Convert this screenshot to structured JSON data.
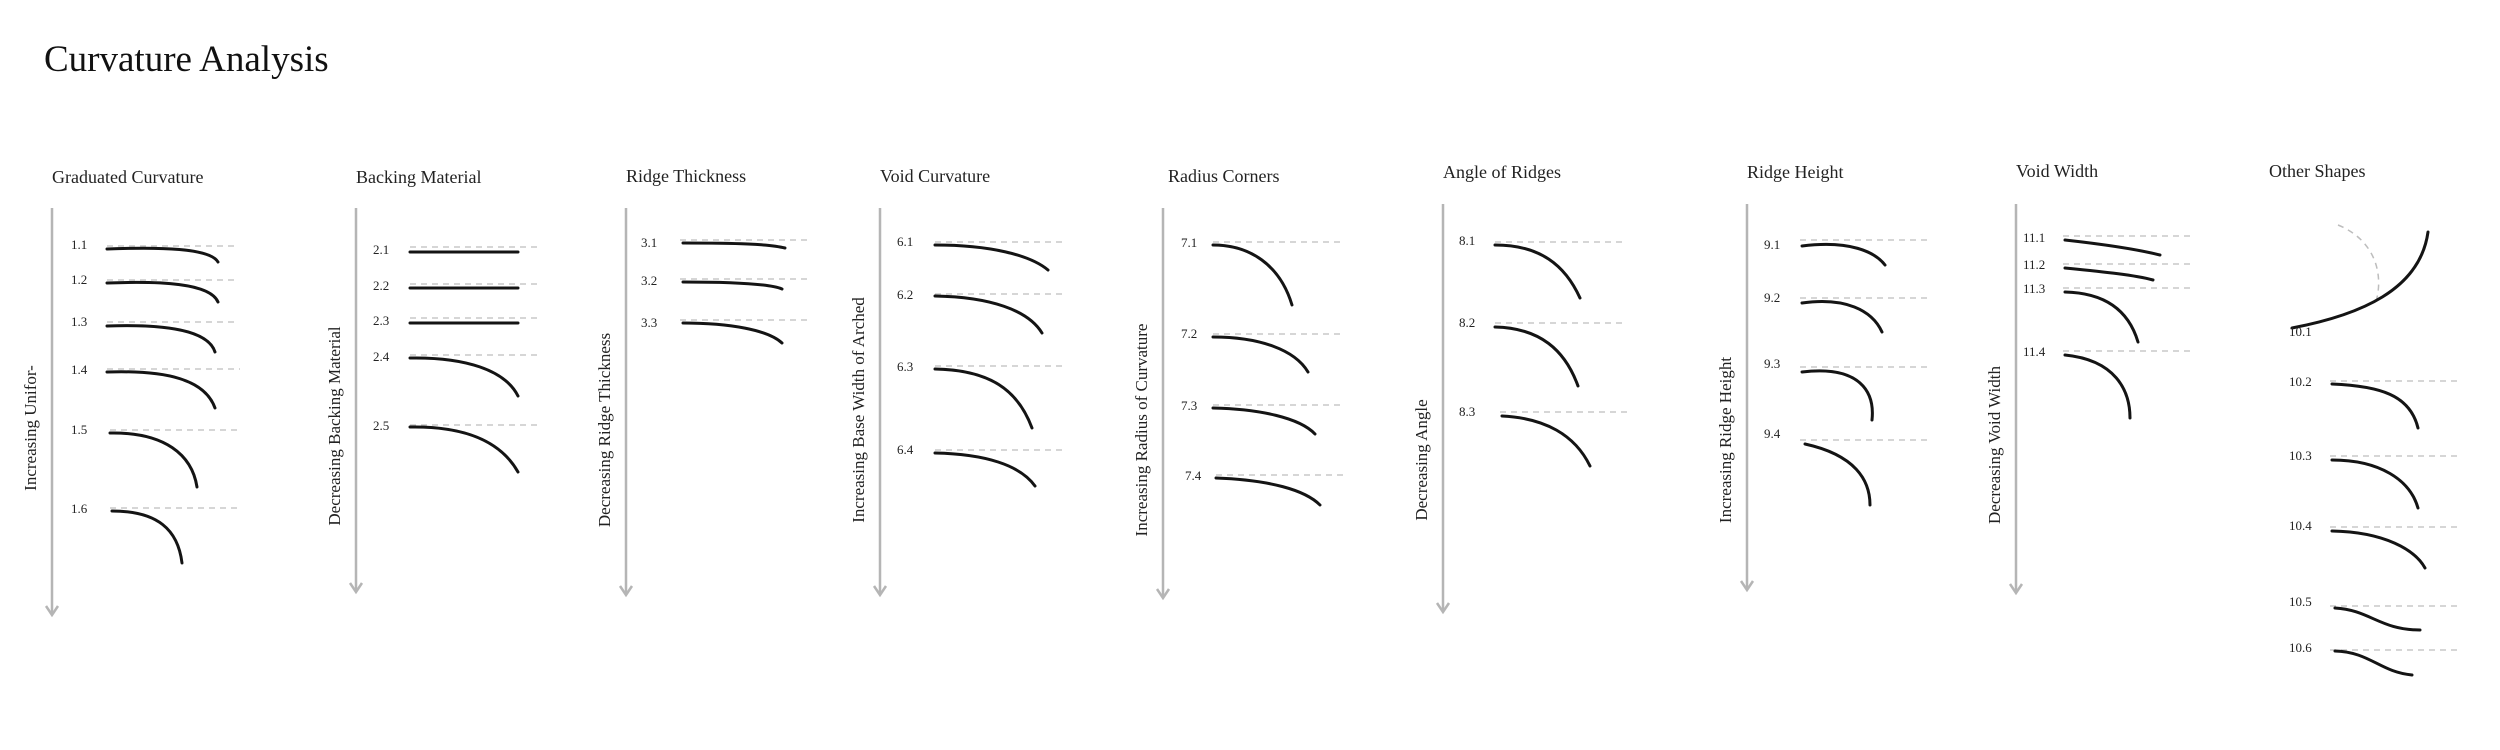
{
  "title": "Curvature Analysis",
  "columns": [
    {
      "id": "graduated-curvature",
      "title": "Graduated Curvature",
      "axis_label": "Increasing Unifor-",
      "items": [
        {
          "label": "1.1",
          "shape": "curve"
        },
        {
          "label": "1.2",
          "shape": "curve"
        },
        {
          "label": "1.3",
          "shape": "curve"
        },
        {
          "label": "1.4",
          "shape": "curve"
        },
        {
          "label": "1.5",
          "shape": "curve"
        },
        {
          "label": "1.6",
          "shape": "curve"
        }
      ]
    },
    {
      "id": "backing-material",
      "title": "Backing Material",
      "axis_label": "Decreasing Backing Material",
      "items": [
        {
          "label": "2.1",
          "shape": "flat"
        },
        {
          "label": "2.2",
          "shape": "flat"
        },
        {
          "label": "2.3",
          "shape": "flat"
        },
        {
          "label": "2.4",
          "shape": "curve"
        },
        {
          "label": "2.5",
          "shape": "curve"
        }
      ]
    },
    {
      "id": "ridge-thickness",
      "title": "Ridge Thickness",
      "axis_label": "Decreasing Ridge Thickness",
      "items": [
        {
          "label": "3.1",
          "shape": "curve"
        },
        {
          "label": "3.2",
          "shape": "curve"
        },
        {
          "label": "3.3",
          "shape": "curve"
        }
      ]
    },
    {
      "id": "void-curvature",
      "title": "Void Curvature",
      "axis_label": "Increasing  Base Width of Arched",
      "items": [
        {
          "label": "6.1",
          "shape": "curve"
        },
        {
          "label": "6.2",
          "shape": "curve"
        },
        {
          "label": "6.3",
          "shape": "curve"
        },
        {
          "label": "6.4",
          "shape": "curve"
        }
      ]
    },
    {
      "id": "radius-corners",
      "title": "Radius Corners",
      "axis_label": "Increasing Radius of Curvature",
      "items": [
        {
          "label": "7.1",
          "shape": "curve"
        },
        {
          "label": "7.2",
          "shape": "curve"
        },
        {
          "label": "7.3",
          "shape": "curve"
        },
        {
          "label": "7.4",
          "shape": "curve"
        }
      ]
    },
    {
      "id": "angle-of-ridges",
      "title": "Angle of Ridges",
      "axis_label": "Decreasing Angle",
      "items": [
        {
          "label": "8.1",
          "shape": "curve"
        },
        {
          "label": "8.2",
          "shape": "curve"
        },
        {
          "label": "8.3",
          "shape": "curve"
        }
      ]
    },
    {
      "id": "ridge-height",
      "title": "Ridge Height",
      "axis_label": "Increasing Ridge Height",
      "items": [
        {
          "label": "9.1",
          "shape": "curve"
        },
        {
          "label": "9.2",
          "shape": "curve"
        },
        {
          "label": "9.3",
          "shape": "curve"
        },
        {
          "label": "9.4",
          "shape": "curve"
        }
      ]
    },
    {
      "id": "void-width",
      "title": "Void Width",
      "axis_label": "Decreasing Void Width",
      "items": [
        {
          "label": "11.1",
          "shape": "curve"
        },
        {
          "label": "11.2",
          "shape": "curve"
        },
        {
          "label": "11.3",
          "shape": "curve"
        },
        {
          "label": "11.4",
          "shape": "curve"
        }
      ]
    },
    {
      "id": "other-shapes",
      "title": "Other Shapes",
      "axis_label": "",
      "items": [
        {
          "label": "10.1",
          "shape": "arc"
        },
        {
          "label": "10.2",
          "shape": "curve"
        },
        {
          "label": "10.3",
          "shape": "curve"
        },
        {
          "label": "10.4",
          "shape": "curve"
        },
        {
          "label": "10.5",
          "shape": "s-curve"
        },
        {
          "label": "10.6",
          "shape": "s-curve"
        }
      ]
    }
  ]
}
